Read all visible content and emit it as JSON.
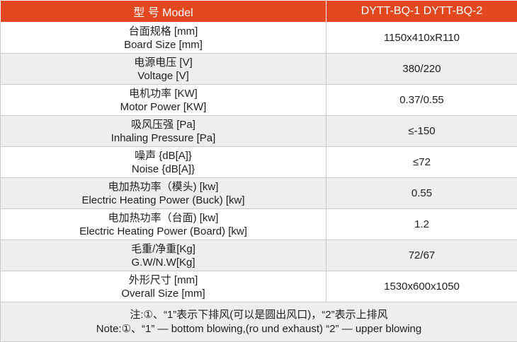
{
  "header": {
    "param_label": "型 号 Model",
    "model_label": "DYTT-BQ-1  DYTT-BQ-2"
  },
  "rows": [
    {
      "label_cn": "台面规格 [mm]",
      "label_en": "Board Size [mm]",
      "value": "1150x410xR110"
    },
    {
      "label_cn": "电源电压 [V]",
      "label_en": "Voltage [V]",
      "value": "380/220"
    },
    {
      "label_cn": "电机功率 [KW]",
      "label_en": "Motor Power [KW]",
      "value": "0.37/0.55"
    },
    {
      "label_cn": "吸风压强 [Pa]",
      "label_en": "Inhaling Pressure [Pa]",
      "value": "≤-150"
    },
    {
      "label_cn": "噪声 {dB[A]}",
      "label_en": "Noise {dB[A]}",
      "value": "≤72"
    },
    {
      "label_cn": "电加热功率（模头) [kw]",
      "label_en": "Electric Heating Power  (Buck) [kw]",
      "value": "0.55"
    },
    {
      "label_cn": "电加热功率（台面) [kw]",
      "label_en": "Electric Heating Power  (Board) [kw]",
      "value": "1.2"
    },
    {
      "label_cn": "毛重/净重[Kg]",
      "label_en": "G.W/N.W[Kg]",
      "value": "72/67"
    },
    {
      "label_cn": "外形尺寸 [mm]",
      "label_en": "Overall Size [mm]",
      "value": "1530x600x1050"
    }
  ],
  "note": {
    "cn": "注:①、“1”表示下排风(可以是圆出风口)，“2”表示上排风",
    "en": "Note:①、“1” — bottom blowing,(ro und exhaust) “2” —  upper blowing"
  },
  "colors": {
    "header_bg": "#e2471f",
    "header_text": "#ffffff",
    "alt_row_bg": "#eeeeee",
    "border": "#c9c9c9"
  }
}
